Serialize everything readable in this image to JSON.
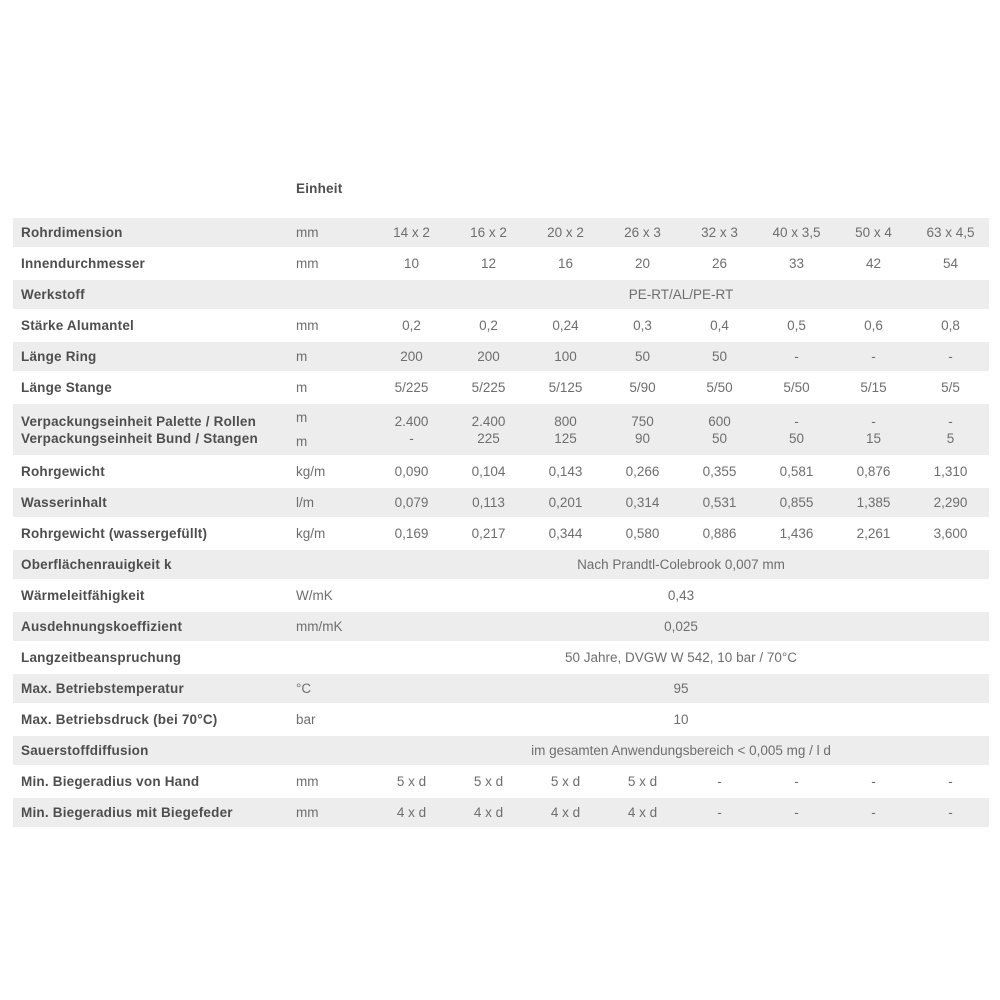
{
  "page": {
    "background": "#ffffff"
  },
  "colors": {
    "row_stripe": "#ededed",
    "label_text": "#4e4e50",
    "value_text": "#6e6e6e"
  },
  "table": {
    "header_label": "Einheit",
    "rows": [
      {
        "kind": "values",
        "label": "Rohrdimension",
        "unit": "mm",
        "values": [
          "14 x 2",
          "16 x 2",
          "20 x 2",
          "26 x 3",
          "32 x 3",
          "40 x 3,5",
          "50 x 4",
          "63 x 4,5"
        ]
      },
      {
        "kind": "values",
        "label": "Innendurchmesser",
        "unit": "mm",
        "values": [
          "10",
          "12",
          "16",
          "20",
          "26",
          "33",
          "42",
          "54"
        ]
      },
      {
        "kind": "span",
        "label": "Werkstoff",
        "unit": "",
        "span": "PE-RT/AL/PE-RT"
      },
      {
        "kind": "values",
        "label": "Stärke Alumantel",
        "unit": "mm",
        "values": [
          "0,2",
          "0,2",
          "0,24",
          "0,3",
          "0,4",
          "0,5",
          "0,6",
          "0,8"
        ]
      },
      {
        "kind": "values",
        "label": "Länge Ring",
        "unit": "m",
        "values": [
          "200",
          "200",
          "100",
          "50",
          "50",
          "-",
          "-",
          "-"
        ]
      },
      {
        "kind": "values",
        "label": "Länge Stange",
        "unit": "m",
        "values": [
          "5/225",
          "5/225",
          "5/125",
          "5/90",
          "5/50",
          "5/50",
          "5/15",
          "5/5"
        ]
      },
      {
        "kind": "double",
        "labels": [
          "Verpackungseinheit Palette / Rollen",
          "Verpackungseinheit Bund / Stangen"
        ],
        "units": [
          "m",
          "m"
        ],
        "values": [
          [
            "2.400",
            "-"
          ],
          [
            "2.400",
            "225"
          ],
          [
            "800",
            "125"
          ],
          [
            "750",
            "90"
          ],
          [
            "600",
            "50"
          ],
          [
            "-",
            "50"
          ],
          [
            "-",
            "15"
          ],
          [
            "-",
            "5"
          ]
        ]
      },
      {
        "kind": "values",
        "label": "Rohrgewicht",
        "unit": "kg/m",
        "values": [
          "0,090",
          "0,104",
          "0,143",
          "0,266",
          "0,355",
          "0,581",
          "0,876",
          "1,310"
        ]
      },
      {
        "kind": "values",
        "label": "Wasserinhalt",
        "unit": "l/m",
        "values": [
          "0,079",
          "0,113",
          "0,201",
          "0,314",
          "0,531",
          "0,855",
          "1,385",
          "2,290"
        ]
      },
      {
        "kind": "values",
        "label": "Rohrgewicht (wassergefüllt)",
        "unit": "kg/m",
        "values": [
          "0,169",
          "0,217",
          "0,344",
          "0,580",
          "0,886",
          "1,436",
          "2,261",
          "3,600"
        ]
      },
      {
        "kind": "span",
        "label": "Oberflächenrauigkeit k",
        "unit": "",
        "span": "Nach Prandtl-Colebrook 0,007 mm"
      },
      {
        "kind": "span",
        "label": "Wärmeleitfähigkeit",
        "unit": "W/mK",
        "span": "0,43"
      },
      {
        "kind": "span",
        "label": "Ausdehnungskoeffizient",
        "unit": "mm/mK",
        "span": "0,025"
      },
      {
        "kind": "span",
        "label": "Langzeitbeanspruchung",
        "unit": "",
        "span": "50 Jahre, DVGW W 542, 10 bar / 70°C"
      },
      {
        "kind": "span",
        "label": "Max. Betriebstemperatur",
        "unit": "°C",
        "span": "95"
      },
      {
        "kind": "span",
        "label": "Max. Betriebsdruck (bei 70°C)",
        "unit": "bar",
        "span": "10"
      },
      {
        "kind": "span",
        "label": "Sauerstoffdiffusion",
        "unit": "",
        "span": "im gesamten Anwendungsbereich < 0,005 mg / l d"
      },
      {
        "kind": "values",
        "label": "Min. Biegeradius von Hand",
        "unit": "mm",
        "values": [
          "5 x d",
          "5 x d",
          "5 x d",
          "5 x d",
          "-",
          "-",
          "-",
          "-"
        ]
      },
      {
        "kind": "values",
        "label": "Min. Biegeradius mit Biegefeder",
        "unit": "mm",
        "values": [
          "4 x d",
          "4 x d",
          "4 x d",
          "4 x d",
          "-",
          "-",
          "-",
          "-"
        ]
      }
    ]
  }
}
